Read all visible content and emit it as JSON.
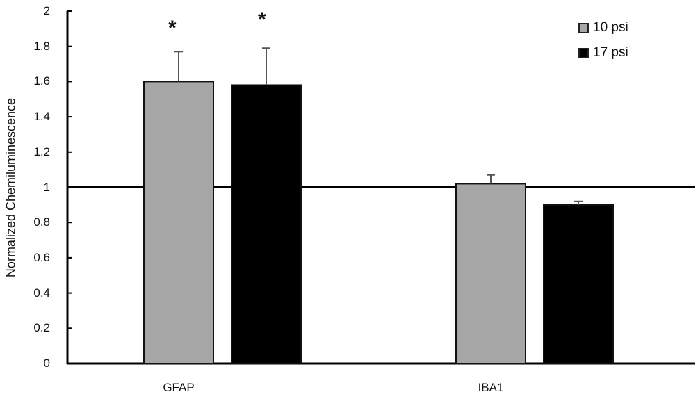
{
  "chart_data": {
    "type": "bar",
    "title": "",
    "xlabel": "",
    "ylabel": "Normalized Chemiluminescence",
    "ylim": [
      0,
      2
    ],
    "yticks": [
      "0",
      "0.2",
      "0.4",
      "0.6",
      "0.8",
      "1",
      "1.2",
      "1.4",
      "1.6",
      "1.8",
      "2"
    ],
    "categories": [
      "GFAP",
      "IBA1"
    ],
    "series": [
      {
        "name": "10 psi",
        "color": "#a6a6a6",
        "values": [
          1.6,
          1.02
        ],
        "error_upper": [
          0.17,
          0.05
        ]
      },
      {
        "name": "17 psi",
        "color": "#000000",
        "values": [
          1.58,
          0.9
        ],
        "error_upper": [
          0.21,
          0.02
        ]
      }
    ],
    "reference_line": {
      "y": 1.0
    },
    "annotations": [
      {
        "text": "*",
        "category": "GFAP",
        "series": "10 psi"
      },
      {
        "text": "*",
        "category": "GFAP",
        "series": "17 psi"
      }
    ],
    "grid": false,
    "legend_position": "top-right"
  },
  "legend": {
    "items": [
      {
        "label": "10 psi",
        "color": "#a6a6a6"
      },
      {
        "label": "17 psi",
        "color": "#000000"
      }
    ]
  },
  "axis": {
    "ylabel": "Normalized Chemiluminescence",
    "ticks": [
      "2",
      "1.8",
      "1.6",
      "1.4",
      "1.2",
      "1",
      "0.8",
      "0.6",
      "0.4",
      "0.2",
      "0"
    ],
    "categories": [
      "GFAP",
      "IBA1"
    ]
  },
  "annotations": {
    "sig1": "*",
    "sig2": "*"
  }
}
